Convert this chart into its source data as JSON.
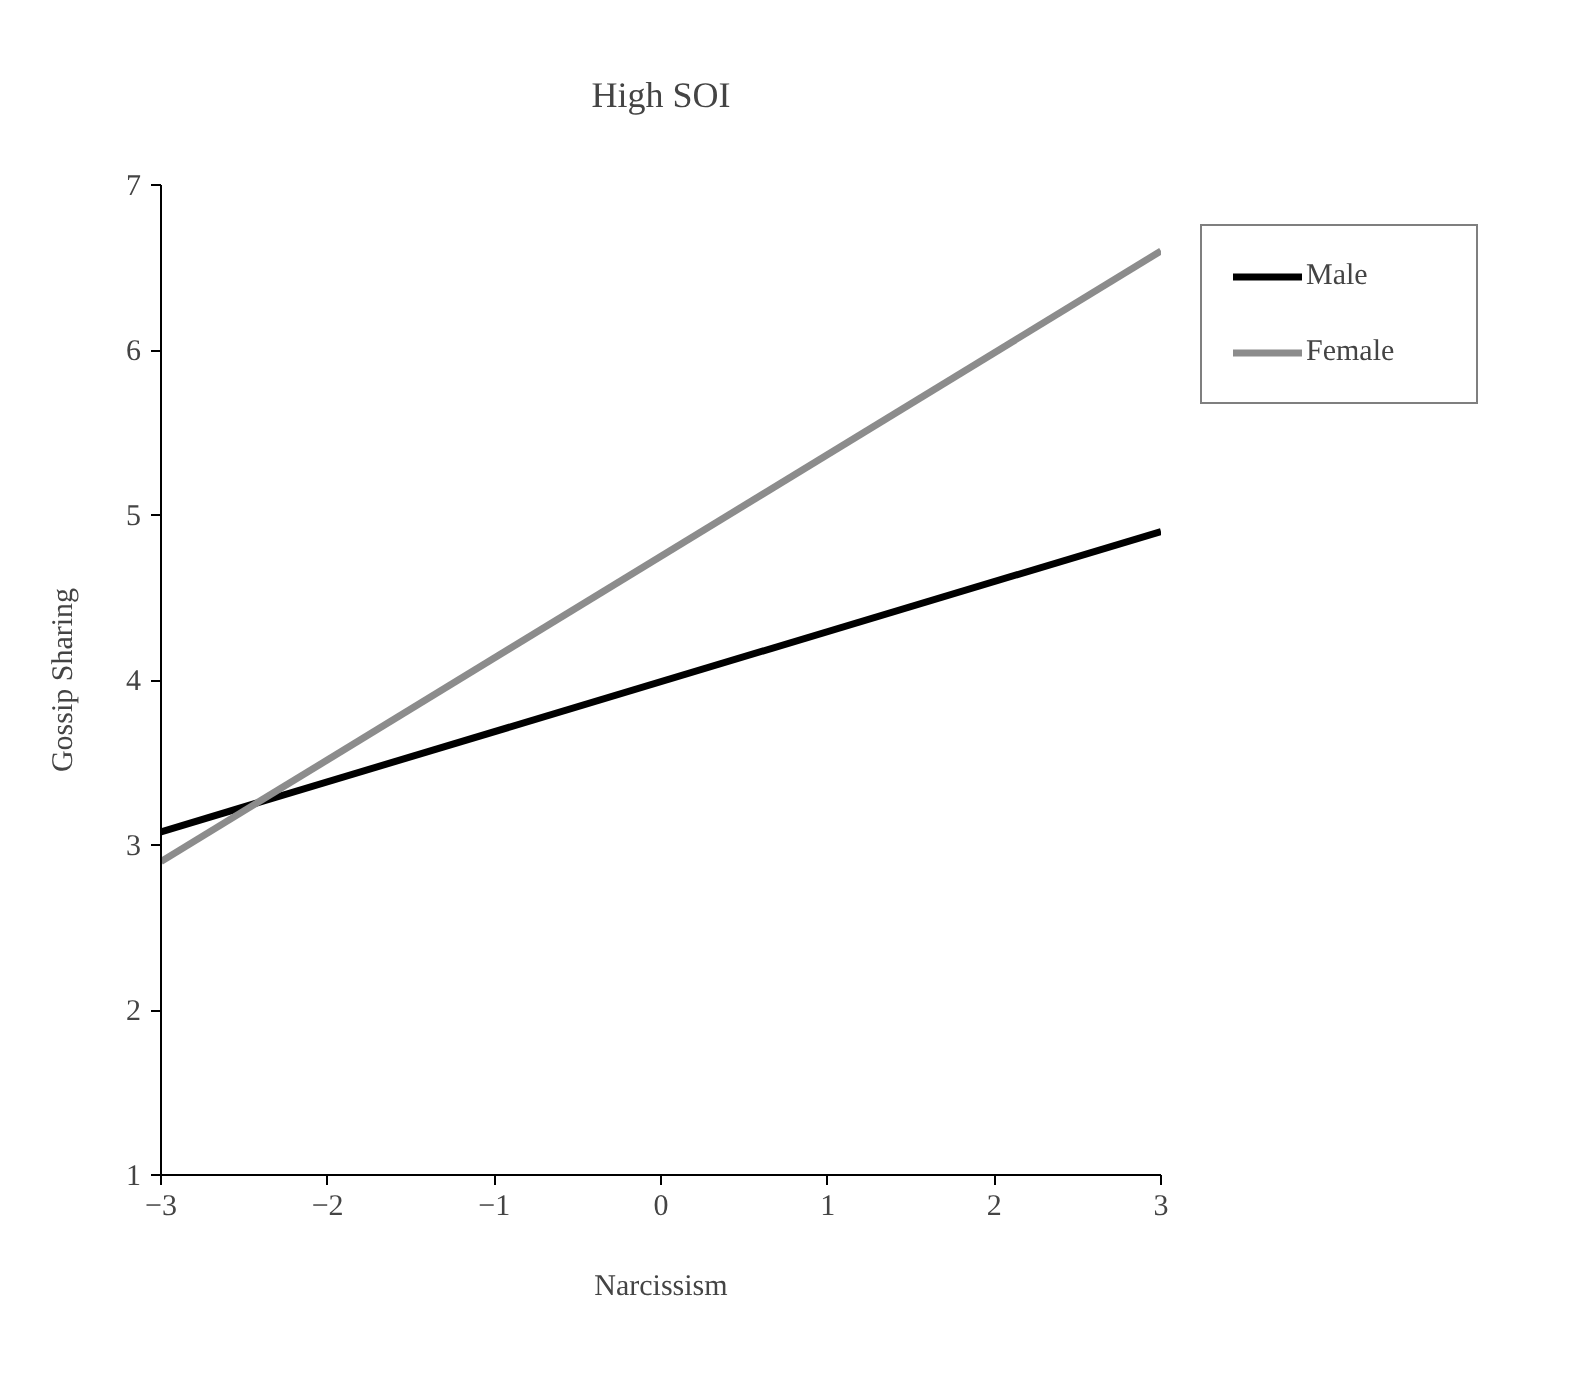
{
  "chart_data": {
    "type": "line",
    "title": "High SOI",
    "xlabel": "Narcissism",
    "ylabel": "Gossip Sharing",
    "x": [
      -3,
      3
    ],
    "series": [
      {
        "name": "Male",
        "color": "#000000",
        "values": [
          3.08,
          4.9
        ]
      },
      {
        "name": "Female",
        "color": "#8c8c8c",
        "values": [
          2.9,
          6.6
        ]
      }
    ],
    "xlim": [
      -3,
      3
    ],
    "xticks": [
      -3,
      -2,
      -1,
      0,
      1,
      2,
      3
    ],
    "ylim": [
      1,
      7
    ],
    "yticks": [
      1,
      2,
      3,
      4,
      5,
      6,
      7
    ],
    "grid": false,
    "legend": "top right",
    "marker": "none",
    "line_style": "solid"
  }
}
